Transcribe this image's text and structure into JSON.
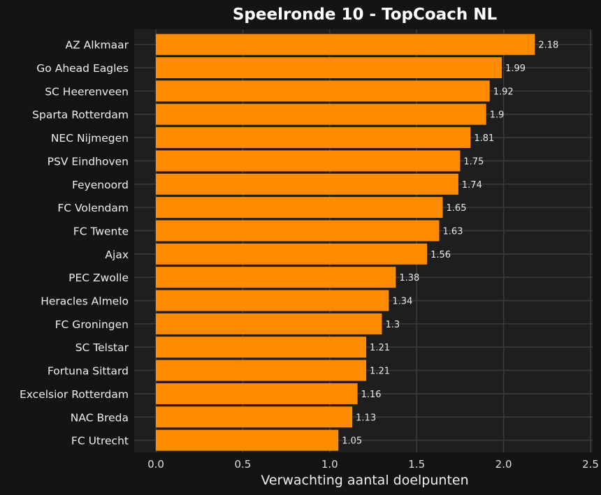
{
  "chart_data": {
    "type": "bar",
    "orientation": "horizontal",
    "title": "Speelronde 10 - TopCoach NL",
    "xlabel": "Verwachting aantal doelpunten",
    "ylabel": "",
    "xlim": [
      0,
      2.5
    ],
    "xticks": [
      "0.0",
      "0.5",
      "1.0",
      "1.5",
      "2.0",
      "2.5"
    ],
    "categories": [
      "AZ Alkmaar",
      "Go Ahead Eagles",
      "SC Heerenveen",
      "Sparta Rotterdam",
      "NEC Nijmegen",
      "PSV Eindhoven",
      "Feyenoord",
      "FC Volendam",
      "FC Twente",
      "Ajax",
      "PEC Zwolle",
      "Heracles Almelo",
      "FC Groningen",
      "SC Telstar",
      "Fortuna Sittard",
      "Excelsior Rotterdam",
      "NAC Breda",
      "FC Utrecht"
    ],
    "values": [
      2.18,
      1.99,
      1.92,
      1.9,
      1.81,
      1.75,
      1.74,
      1.65,
      1.63,
      1.56,
      1.38,
      1.34,
      1.3,
      1.21,
      1.21,
      1.16,
      1.13,
      1.05
    ],
    "value_labels": [
      "2.18",
      "1.99",
      "1.92",
      "1.9",
      "1.81",
      "1.75",
      "1.74",
      "1.65",
      "1.63",
      "1.56",
      "1.38",
      "1.34",
      "1.3",
      "1.21",
      "1.21",
      "1.16",
      "1.13",
      "1.05"
    ],
    "grid": true,
    "colors": {
      "bar": "#ff8c00",
      "background": "#141414",
      "panel": "#1e1e1e",
      "grid": "#3a3a3a"
    }
  }
}
